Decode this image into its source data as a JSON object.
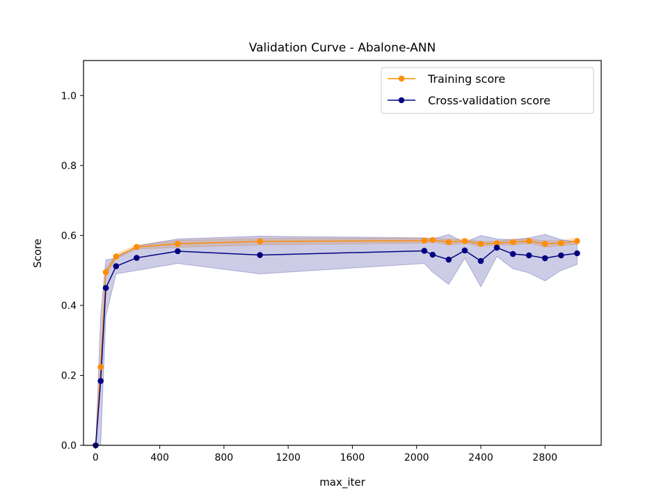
{
  "chart_data": {
    "type": "line",
    "title": "Validation Curve - Abalone-ANN",
    "xlabel": "max_iter",
    "ylabel": "Score",
    "xlim": [
      -75,
      3150
    ],
    "ylim": [
      0.0,
      1.1
    ],
    "xticks": [
      0,
      400,
      800,
      1200,
      1600,
      2000,
      2400,
      2800
    ],
    "yticks": [
      0.0,
      0.2,
      0.4,
      0.6,
      0.8,
      1.0
    ],
    "xtick_labels": [
      "0",
      "400",
      "800",
      "1200",
      "1600",
      "2000",
      "2400",
      "2800"
    ],
    "ytick_labels": [
      "0.0",
      "0.2",
      "0.4",
      "0.6",
      "0.8",
      "1.0"
    ],
    "grid": false,
    "legend_position": "top-right",
    "x": [
      1,
      32,
      64,
      128,
      256,
      512,
      1024,
      2048,
      2100,
      2200,
      2300,
      2400,
      2500,
      2600,
      2700,
      2800,
      2900,
      3000
    ],
    "series": [
      {
        "name": "Training score",
        "color": "#ff8c00",
        "values": [
          0.0,
          0.224,
          0.495,
          0.54,
          0.567,
          0.576,
          0.583,
          0.585,
          0.587,
          0.581,
          0.584,
          0.576,
          0.578,
          0.581,
          0.584,
          0.576,
          0.578,
          0.584
        ],
        "band_lower": [
          0.0,
          0.21,
          0.485,
          0.533,
          0.561,
          0.566,
          0.573,
          0.578,
          0.581,
          0.573,
          0.578,
          0.569,
          0.573,
          0.573,
          0.578,
          0.567,
          0.571,
          0.575
        ],
        "band_upper": [
          0.0,
          0.24,
          0.505,
          0.547,
          0.573,
          0.586,
          0.592,
          0.592,
          0.593,
          0.589,
          0.59,
          0.583,
          0.583,
          0.589,
          0.59,
          0.585,
          0.585,
          0.593
        ]
      },
      {
        "name": "Cross-validation score",
        "color": "#000080",
        "values": [
          0.0,
          0.184,
          0.45,
          0.512,
          0.536,
          0.555,
          0.544,
          0.556,
          0.545,
          0.531,
          0.557,
          0.527,
          0.565,
          0.547,
          0.543,
          0.535,
          0.543,
          0.549
        ],
        "band_lower": [
          0.0,
          0.0,
          0.37,
          0.49,
          0.5,
          0.52,
          0.49,
          0.52,
          0.495,
          0.46,
          0.535,
          0.453,
          0.54,
          0.505,
          0.493,
          0.47,
          0.5,
          0.517
        ],
        "band_upper": [
          0.0,
          0.37,
          0.53,
          0.535,
          0.57,
          0.59,
          0.598,
          0.593,
          0.59,
          0.603,
          0.58,
          0.6,
          0.59,
          0.588,
          0.593,
          0.603,
          0.588,
          0.582
        ]
      }
    ]
  }
}
